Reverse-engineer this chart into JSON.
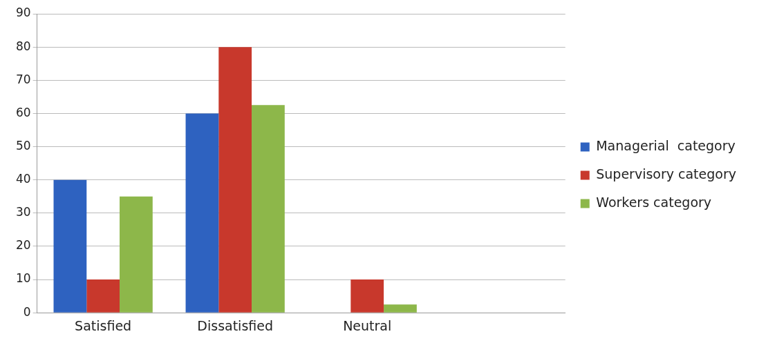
{
  "chart_data": {
    "type": "bar",
    "categories": [
      "Satisfied",
      "Dissatisfied",
      "Neutral",
      null
    ],
    "series": [
      {
        "name": "Managerial  category",
        "color": "#2e62c0",
        "values": [
          40,
          60,
          0,
          null
        ]
      },
      {
        "name": "Supervisory category",
        "color": "#c8382c",
        "values": [
          10,
          80,
          10,
          null
        ]
      },
      {
        "name": "Workers category",
        "color": "#8db74a",
        "values": [
          35,
          62.5,
          2.5,
          null
        ]
      }
    ],
    "ylim": [
      0,
      90
    ],
    "yticks": [
      0,
      10,
      20,
      30,
      40,
      50,
      60,
      70,
      80,
      90
    ],
    "grid": "y",
    "legend": "right"
  }
}
